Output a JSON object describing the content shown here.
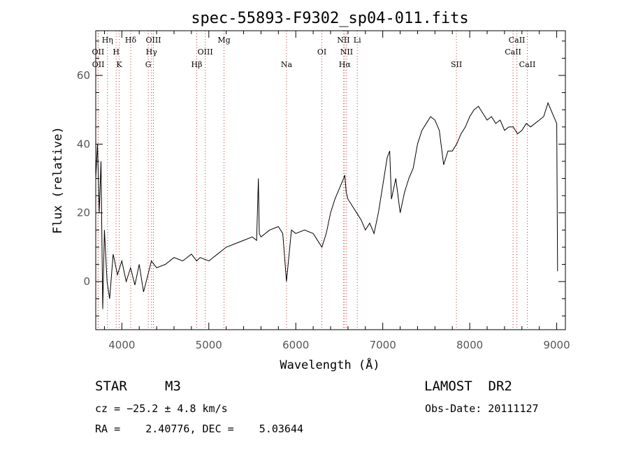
{
  "chart_data": {
    "type": "line",
    "title": "spec-55893-F9302_sp04-011.fits",
    "xlabel": "Wavelength (Å)",
    "ylabel": "Flux (relative)",
    "xlim": [
      3700,
      9100
    ],
    "ylim": [
      -14,
      73
    ],
    "x_ticks": [
      4000,
      5000,
      6000,
      7000,
      8000,
      9000
    ],
    "y_ticks": [
      0,
      20,
      40,
      60
    ],
    "grid": false,
    "series": [
      {
        "x": [
          3700,
          3720,
          3740,
          3760,
          3780,
          3800,
          3830,
          3860,
          3900,
          3950,
          4000,
          4050,
          4100,
          4150,
          4200,
          4250,
          4300,
          4340,
          4400,
          4500,
          4600,
          4700,
          4800,
          4860,
          4900,
          5000,
          5100,
          5200,
          5300,
          5400,
          5500,
          5550,
          5570,
          5580,
          5600,
          5700,
          5800,
          5850,
          5893,
          5950,
          6000,
          6100,
          6200,
          6300,
          6350,
          6400,
          6450,
          6500,
          6550,
          6563,
          6580,
          6600,
          6650,
          6700,
          6750,
          6800,
          6850,
          6900,
          6950,
          7000,
          7050,
          7080,
          7100,
          7150,
          7200,
          7250,
          7300,
          7350,
          7400,
          7450,
          7500,
          7550,
          7600,
          7650,
          7700,
          7750,
          7800,
          7850,
          7900,
          7950,
          8000,
          8050,
          8100,
          8150,
          8200,
          8250,
          8300,
          8350,
          8400,
          8450,
          8500,
          8550,
          8600,
          8650,
          8700,
          8750,
          8800,
          8850,
          8900,
          8950,
          9000,
          9010
        ],
        "y": [
          30,
          40,
          20,
          35,
          -8,
          15,
          0,
          -5,
          8,
          2,
          6,
          0,
          4,
          -1,
          5,
          -3,
          2,
          6,
          4,
          5,
          7,
          6,
          8,
          6,
          7,
          6,
          8,
          10,
          11,
          12,
          13,
          12,
          30,
          14,
          13,
          15,
          16,
          14,
          0,
          15,
          14,
          15,
          14,
          10,
          14,
          20,
          24,
          27,
          30,
          31,
          26,
          24,
          22,
          20,
          18,
          15,
          17,
          14,
          20,
          28,
          36,
          38,
          24,
          30,
          20,
          26,
          30,
          33,
          40,
          44,
          46,
          48,
          47,
          44,
          34,
          38,
          38,
          40,
          43,
          45,
          48,
          50,
          51,
          49,
          47,
          48,
          46,
          47,
          44,
          45,
          45,
          43,
          44,
          46,
          45,
          46,
          47,
          48,
          52,
          49,
          46,
          3
        ]
      }
    ],
    "line_markers": [
      {
        "label": "OII",
        "wl": 3727,
        "row": 2
      },
      {
        "label": "OII",
        "wl": 3729,
        "row": 3
      },
      {
        "label": "Hη",
        "wl": 3835,
        "row": 1
      },
      {
        "label": "H",
        "wl": 3934,
        "row": 2
      },
      {
        "label": "K",
        "wl": 3969,
        "row": 3
      },
      {
        "label": "Hδ",
        "wl": 4102,
        "row": 1
      },
      {
        "label": "OIII",
        "wl": 4363,
        "row": 1
      },
      {
        "label": "Hγ",
        "wl": 4341,
        "row": 2
      },
      {
        "label": "G",
        "wl": 4304,
        "row": 3
      },
      {
        "label": "OIII",
        "wl": 4959,
        "row": 2
      },
      {
        "label": "Hβ",
        "wl": 4861,
        "row": 3
      },
      {
        "label": "Mg",
        "wl": 5175,
        "row": 1
      },
      {
        "label": "Na",
        "wl": 5893,
        "row": 3
      },
      {
        "label": "OI",
        "wl": 6300,
        "row": 2
      },
      {
        "label": "NII",
        "wl": 6548,
        "row": 1
      },
      {
        "label": "NII",
        "wl": 6584,
        "row": 2
      },
      {
        "label": "Hα",
        "wl": 6563,
        "row": 3
      },
      {
        "label": "Li",
        "wl": 6707,
        "row": 1
      },
      {
        "label": "SII",
        "wl": 7847,
        "row": 3
      },
      {
        "label": "CaII",
        "wl": 8542,
        "row": 1
      },
      {
        "label": "CaII",
        "wl": 8498,
        "row": 2
      },
      {
        "label": "CaII",
        "wl": 8662,
        "row": 3
      }
    ]
  },
  "info": {
    "object_class": "STAR",
    "subclass": "M3",
    "survey": "LAMOST  DR2",
    "cz": "cz = −25.2 ± 4.8 km/s",
    "obs_date": "Obs-Date: 20111127",
    "coords": "RA =    2.40776, DEC =    5.03644"
  },
  "colors": {
    "spectrum": "#000000",
    "line_markers": "#cc3333",
    "frame": "#000000"
  }
}
